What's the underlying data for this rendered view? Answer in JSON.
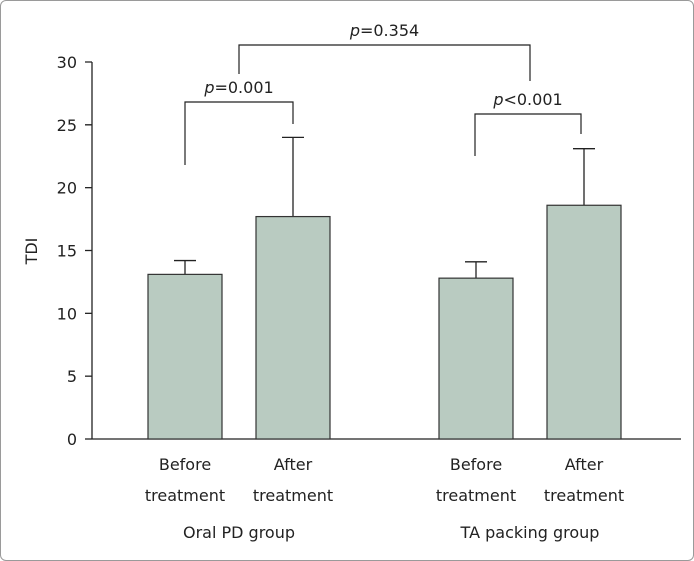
{
  "chart_data": {
    "type": "bar",
    "title": "",
    "xlabel": "",
    "ylabel": "TDI",
    "ylim": [
      0,
      30
    ],
    "yticks": [
      0,
      5,
      10,
      15,
      20,
      25,
      30
    ],
    "grid": false,
    "groups": [
      {
        "name": "Oral PD group",
        "categories": [
          [
            "Before",
            "treatment"
          ],
          [
            "After",
            "treatment"
          ]
        ]
      },
      {
        "name": "TA packing group",
        "categories": [
          [
            "Before",
            "treatment"
          ],
          [
            "After",
            "treatment"
          ]
        ]
      }
    ],
    "values": [
      13.1,
      17.7,
      12.8,
      18.6
    ],
    "error_upper": [
      14.2,
      24.0,
      14.1,
      23.1
    ],
    "bar_color": "#b9cbc1",
    "annotations": [
      {
        "label": "p",
        "text": "=0.001",
        "between": [
          0,
          1
        ]
      },
      {
        "label": "p",
        "text": "<0.001",
        "between": [
          2,
          3
        ]
      },
      {
        "label": "p",
        "text": "=0.354",
        "between": [
          "Oral PD group",
          "TA packing group"
        ]
      }
    ]
  }
}
